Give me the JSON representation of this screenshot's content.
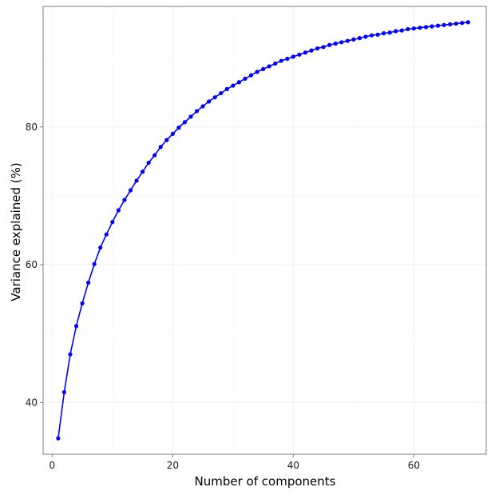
{
  "colors": {
    "series": "#0000ff",
    "grid": "#ececec",
    "panel_border": "#7f7f7f",
    "background": "#ffffff"
  },
  "chart_data": {
    "type": "line",
    "xlabel": "Number of components",
    "ylabel": "Variance explained (%)",
    "xlim": [
      -1.5,
      72
    ],
    "ylim": [
      32.5,
      97.5
    ],
    "x_ticks": [
      0,
      20,
      40,
      60
    ],
    "x_tick_labels": [
      "0",
      "20",
      "40",
      "60"
    ],
    "y_ticks": [
      40,
      60,
      80
    ],
    "y_tick_labels": [
      "40",
      "60",
      "80"
    ],
    "grid": true,
    "legend": "none",
    "series": [
      {
        "markers": true,
        "x": [
          1,
          2,
          3,
          4,
          5,
          6,
          7,
          8,
          9,
          10,
          11,
          12,
          13,
          14,
          15,
          16,
          17,
          18,
          19,
          20,
          21,
          22,
          23,
          24,
          25,
          26,
          27,
          28,
          29,
          30,
          31,
          32,
          33,
          34,
          35,
          36,
          37,
          38,
          39,
          40,
          41,
          42,
          43,
          44,
          45,
          46,
          47,
          48,
          49,
          50,
          51,
          52,
          53,
          54,
          55,
          56,
          57,
          58,
          59,
          60,
          61,
          62,
          63,
          64,
          65,
          66,
          67,
          68,
          69
        ],
        "y": [
          34.8,
          41.5,
          47.0,
          51.1,
          54.4,
          57.4,
          60.1,
          62.5,
          64.4,
          66.2,
          67.9,
          69.4,
          70.8,
          72.2,
          73.5,
          74.8,
          75.9,
          77.1,
          78.1,
          79.0,
          79.9,
          80.7,
          81.5,
          82.3,
          83.0,
          83.7,
          84.3,
          84.9,
          85.5,
          86.0,
          86.5,
          87.0,
          87.5,
          88.0,
          88.4,
          88.8,
          89.2,
          89.6,
          89.9,
          90.2,
          90.5,
          90.8,
          91.1,
          91.4,
          91.6,
          91.9,
          92.1,
          92.3,
          92.5,
          92.7,
          92.9,
          93.1,
          93.3,
          93.4,
          93.6,
          93.7,
          93.9,
          94.0,
          94.2,
          94.3,
          94.4,
          94.5,
          94.6,
          94.7,
          94.8,
          94.9,
          95.0,
          95.1,
          95.2
        ]
      }
    ]
  }
}
